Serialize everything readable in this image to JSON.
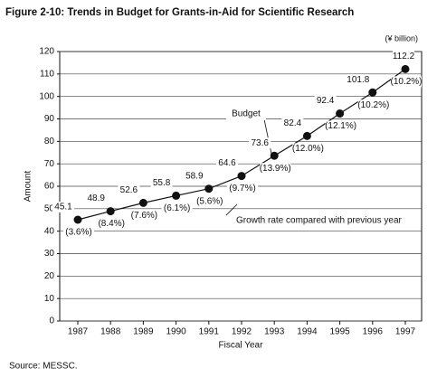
{
  "chart_data": {
    "type": "line",
    "title": "Figure 2-10: Trends in Budget for Grants-in-Aid for Scientific Research",
    "unit": "(¥ billion)",
    "y_label": "Amount",
    "x_label": "Fiscal Year",
    "categories": [
      "1987",
      "1988",
      "1989",
      "1990",
      "1991",
      "1992",
      "1993",
      "1994",
      "1995",
      "1996",
      "1997"
    ],
    "values": [
      45.1,
      48.9,
      52.6,
      55.8,
      58.9,
      64.6,
      73.6,
      82.4,
      92.4,
      101.8,
      112.2
    ],
    "growth_labels": [
      "(3.6%)",
      "(8.4%)",
      "(7.6%)",
      "(6.1%)",
      "(5.6%)",
      "(9.7%)",
      "(13.9%)",
      "(12.0%)",
      "(12.1%)",
      "(10.2%)",
      "(10.2%)"
    ],
    "color": "#111111",
    "ylim": [
      0,
      120
    ],
    "yticks": [
      0,
      10,
      20,
      30,
      40,
      50,
      60,
      70,
      80,
      90,
      100,
      110,
      120
    ],
    "grid": true,
    "annotations": [
      "Budget",
      "Growth rate compared with previous year"
    ],
    "source": "Source: MESSC."
  }
}
